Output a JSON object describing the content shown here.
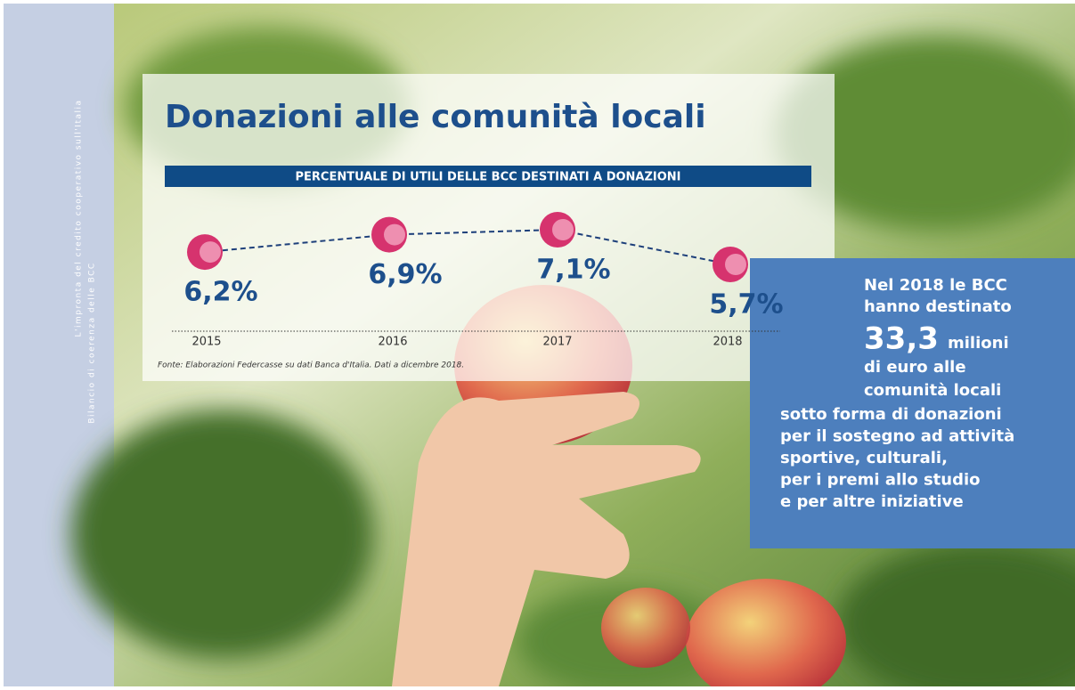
{
  "sidebar": {
    "line1": "L'impronta del credito cooperativo sull'Italia",
    "line2": "Bilancio di coerenza delle BCC"
  },
  "chart_data": {
    "type": "line",
    "title": "Donazioni alle comunità locali",
    "subtitle": "PERCENTUALE DI UTILI DELLE BCC DESTINATI A DONAZIONI",
    "categories": [
      "2015",
      "2016",
      "2017",
      "2018"
    ],
    "values": [
      6.2,
      6.9,
      7.1,
      5.7
    ],
    "value_labels": [
      "6,2%",
      "6,9%",
      "7,1%",
      "5,7%"
    ],
    "color": "#1d3f7a",
    "source": "Fonte: Elaborazioni Federcasse su dati Banca d'Italia. Dati a dicembre 2018."
  },
  "callout": {
    "lines_top": [
      "Nel 2018 le BCC",
      "hanno destinato"
    ],
    "amount": "33,3",
    "unit": "milioni",
    "lines_mid": [
      "di euro alle",
      "comunità locali"
    ],
    "lines_bottom": [
      "sotto forma di donazioni",
      "per il sostegno ad attività",
      "sportive, culturali,",
      "per i premi allo studio",
      "e per altre iniziative"
    ]
  }
}
